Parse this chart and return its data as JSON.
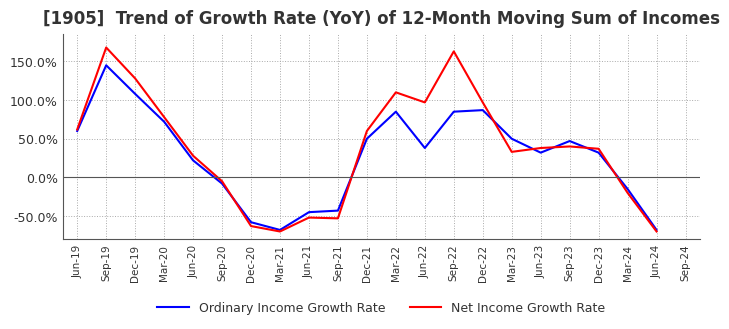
{
  "title": "[1905]  Trend of Growth Rate (YoY) of 12-Month Moving Sum of Incomes",
  "x_labels": [
    "Jun-19",
    "Sep-19",
    "Dec-19",
    "Mar-20",
    "Jun-20",
    "Sep-20",
    "Dec-20",
    "Mar-21",
    "Jun-21",
    "Sep-21",
    "Dec-21",
    "Mar-22",
    "Jun-22",
    "Sep-22",
    "Dec-22",
    "Mar-23",
    "Jun-23",
    "Sep-23",
    "Dec-23",
    "Mar-24",
    "Jun-24",
    "Sep-24"
  ],
  "ordinary_income": [
    60.0,
    145.0,
    108.0,
    72.0,
    22.0,
    -8.0,
    -58.0,
    -68.0,
    -45.0,
    -43.0,
    50.0,
    85.0,
    38.0,
    85.0,
    87.0,
    50.0,
    32.0,
    47.0,
    32.0,
    -15.0,
    -68.0,
    null
  ],
  "net_income": [
    62.0,
    168.0,
    128.0,
    78.0,
    28.0,
    -5.0,
    -63.0,
    -70.0,
    -52.0,
    -53.0,
    60.0,
    110.0,
    97.0,
    163.0,
    97.0,
    33.0,
    38.0,
    40.0,
    37.0,
    -20.0,
    -70.0,
    null
  ],
  "ordinary_color": "#0000ff",
  "net_color": "#ff0000",
  "ylim": [
    -80,
    185
  ],
  "yticks": [
    -50.0,
    0.0,
    50.0,
    100.0,
    150.0
  ],
  "title_fontsize": 12,
  "legend_labels": [
    "Ordinary Income Growth Rate",
    "Net Income Growth Rate"
  ],
  "background_color": "#ffffff",
  "grid_color": "#aaaaaa"
}
